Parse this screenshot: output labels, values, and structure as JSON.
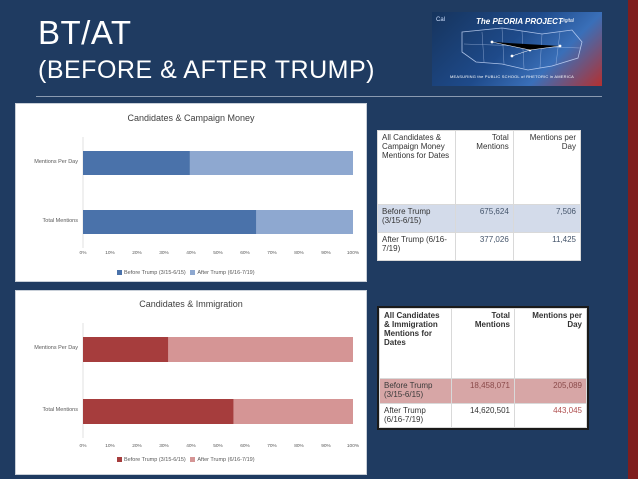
{
  "slide": {
    "title_line1": "BT/AT",
    "title_line2": "(BEFORE & AFTER TRUMP)",
    "colors": {
      "background": "#1f3b61",
      "money_before": "#4a72aa",
      "money_after": "#8ea8d0",
      "immig_before": "#a63d3d",
      "immig_after": "#d59595"
    }
  },
  "logo": {
    "small": "Cal",
    "title": "The PEORIA PROJECT",
    "tag": "Digital",
    "subtitle": "MEASURING the PUBLIC SCHOOL of RHETORIC in AMERICA"
  },
  "chart_data": [
    {
      "type": "bar",
      "orientation": "horizontal",
      "stacked": "percent",
      "title": "Candidates & Campaign Money",
      "categories": [
        "Mentions Per Day",
        "Total Mentions"
      ],
      "series": [
        {
          "name": "Before Trump (3/15-6/15)",
          "values": [
            39.6,
            64.2
          ]
        },
        {
          "name": "After Trump (6/16-7/19)",
          "values": [
            60.4,
            35.8
          ]
        }
      ],
      "xticks": [
        "0%",
        "10%",
        "20%",
        "30%",
        "40%",
        "50%",
        "60%",
        "70%",
        "80%",
        "90%",
        "100%"
      ],
      "xlim": [
        0,
        100
      ],
      "legend_position": "bottom"
    },
    {
      "type": "bar",
      "orientation": "horizontal",
      "stacked": "percent",
      "title": "Candidates & Immigration",
      "categories": [
        "Mentions Per Day",
        "Total Mentions"
      ],
      "series": [
        {
          "name": "Before Trump (3/15-6/15)",
          "values": [
            31.6,
            55.8
          ]
        },
        {
          "name": "After Trump (6/16-7/19)",
          "values": [
            68.4,
            44.2
          ]
        }
      ],
      "xticks": [
        "0%",
        "10%",
        "20%",
        "30%",
        "40%",
        "50%",
        "60%",
        "70%",
        "80%",
        "90%",
        "100%"
      ],
      "xlim": [
        0,
        100
      ],
      "legend_position": "bottom"
    }
  ],
  "table_money": {
    "header": [
      "All Candidates & Campaign Money Mentions for Dates",
      "Total Mentions",
      "Mentions per Day"
    ],
    "rows": [
      [
        "Before Trump (3/15-6/15)",
        "675,624",
        "7,506"
      ],
      [
        "After Trump (6/16-7/19)",
        "377,026",
        "11,425"
      ]
    ]
  },
  "table_immig": {
    "header": [
      "All Candidates & Immigration Mentions for Dates",
      "Total Mentions",
      "Mentions per Day"
    ],
    "rows": [
      [
        "Before Trump (3/15-6/15)",
        "18,458,071",
        "205,089"
      ],
      [
        "After Trump (6/16-7/19)",
        "14,620,501",
        "443,045"
      ]
    ]
  }
}
